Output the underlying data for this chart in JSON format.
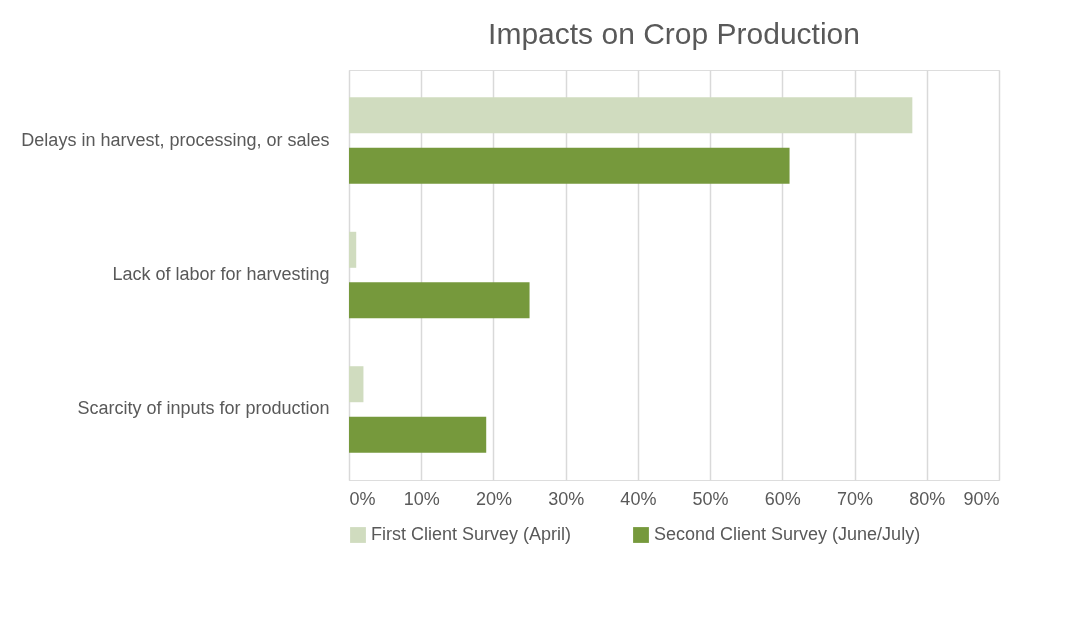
{
  "chart_data": {
    "type": "bar",
    "orientation": "horizontal",
    "title": "Impacts on Crop Production",
    "categories": [
      "Delays in harvest, processing, or sales",
      "Lack of labor for harvesting",
      "Scarcity of inputs for production"
    ],
    "series": [
      {
        "name": "First Client Survey (April)",
        "color": "#d0dcbf",
        "values": [
          78,
          1,
          2
        ]
      },
      {
        "name": "Second Client Survey (June/July)",
        "color": "#76993c",
        "values": [
          61,
          25,
          19
        ]
      }
    ],
    "xlim": [
      0,
      90
    ],
    "xticks": [
      {
        "value": 0,
        "label": "0%"
      },
      {
        "value": 10,
        "label": "10%"
      },
      {
        "value": 20,
        "label": "20%"
      },
      {
        "value": 30,
        "label": "30%"
      },
      {
        "value": 40,
        "label": "40%"
      },
      {
        "value": 50,
        "label": "50%"
      },
      {
        "value": 60,
        "label": "60%"
      },
      {
        "value": 70,
        "label": "70%"
      },
      {
        "value": 80,
        "label": "80%"
      },
      {
        "value": 90,
        "label": "90%"
      }
    ],
    "grid": "x",
    "legend": "bottom"
  }
}
